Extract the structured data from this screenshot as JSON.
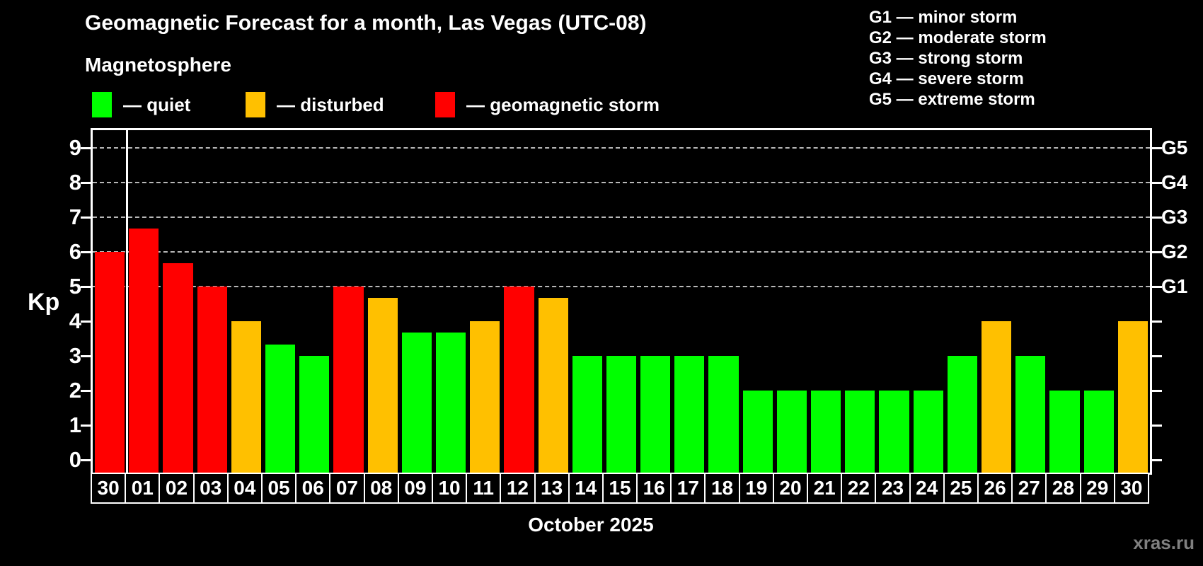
{
  "header": {
    "title": "Geomagnetic Forecast for a month, Las Vegas (UTC-08)",
    "subtitle": "Magnetosphere",
    "legend": [
      {
        "status": "quiet",
        "label": "— quiet",
        "color": "#00ff00"
      },
      {
        "status": "disturbed",
        "label": "— disturbed",
        "color": "#ffc000"
      },
      {
        "status": "storm",
        "label": "— geomagnetic storm",
        "color": "#ff0000"
      }
    ],
    "g_scale": [
      "G1 — minor storm",
      "G2 — moderate storm",
      "G3 — strong storm",
      "G4 — severe storm",
      "G5 — extreme storm"
    ]
  },
  "footer": {
    "month_label": "October 2025",
    "watermark": "xras.ru"
  },
  "chart_data": {
    "type": "bar",
    "title": "Geomagnetic Forecast for a month, Las Vegas (UTC-08)",
    "subtitle": "Magnetosphere",
    "xlabel": "October 2025",
    "ylabel": "Kp",
    "ylim": [
      0,
      9
    ],
    "y_ticks": [
      0,
      1,
      2,
      3,
      4,
      5,
      6,
      7,
      8,
      9
    ],
    "gridlines_at": [
      5,
      6,
      7,
      8,
      9
    ],
    "grid": "dashed-horizontal-only-at-storm-levels",
    "legend_position": "top-left",
    "categories": [
      "30",
      "01",
      "02",
      "03",
      "04",
      "05",
      "06",
      "07",
      "08",
      "09",
      "10",
      "11",
      "12",
      "13",
      "14",
      "15",
      "16",
      "17",
      "18",
      "19",
      "20",
      "21",
      "22",
      "23",
      "24",
      "25",
      "26",
      "27",
      "28",
      "29",
      "30"
    ],
    "values": [
      6,
      6.67,
      5.67,
      5,
      4,
      3.33,
      3,
      5,
      4.67,
      3.67,
      3.67,
      4,
      5,
      4.67,
      3,
      3,
      3,
      3,
      3,
      2,
      2,
      2,
      2,
      2,
      2,
      3,
      4,
      3,
      2,
      2,
      4
    ],
    "statuses": [
      "storm",
      "storm",
      "storm",
      "storm",
      "disturbed",
      "quiet",
      "quiet",
      "storm",
      "disturbed",
      "quiet",
      "quiet",
      "disturbed",
      "storm",
      "disturbed",
      "quiet",
      "quiet",
      "quiet",
      "quiet",
      "quiet",
      "quiet",
      "quiet",
      "quiet",
      "quiet",
      "quiet",
      "quiet",
      "quiet",
      "disturbed",
      "quiet",
      "quiet",
      "quiet",
      "disturbed"
    ],
    "colors": {
      "quiet": "#00ff00",
      "disturbed": "#ffc000",
      "storm": "#ff0000"
    },
    "right_axis_labels": [
      {
        "value": 5,
        "label": "G1"
      },
      {
        "value": 6,
        "label": "G2"
      },
      {
        "value": 7,
        "label": "G3"
      },
      {
        "value": 8,
        "label": "G4"
      },
      {
        "value": 9,
        "label": "G5"
      }
    ],
    "month_separator_after_index": 0
  }
}
